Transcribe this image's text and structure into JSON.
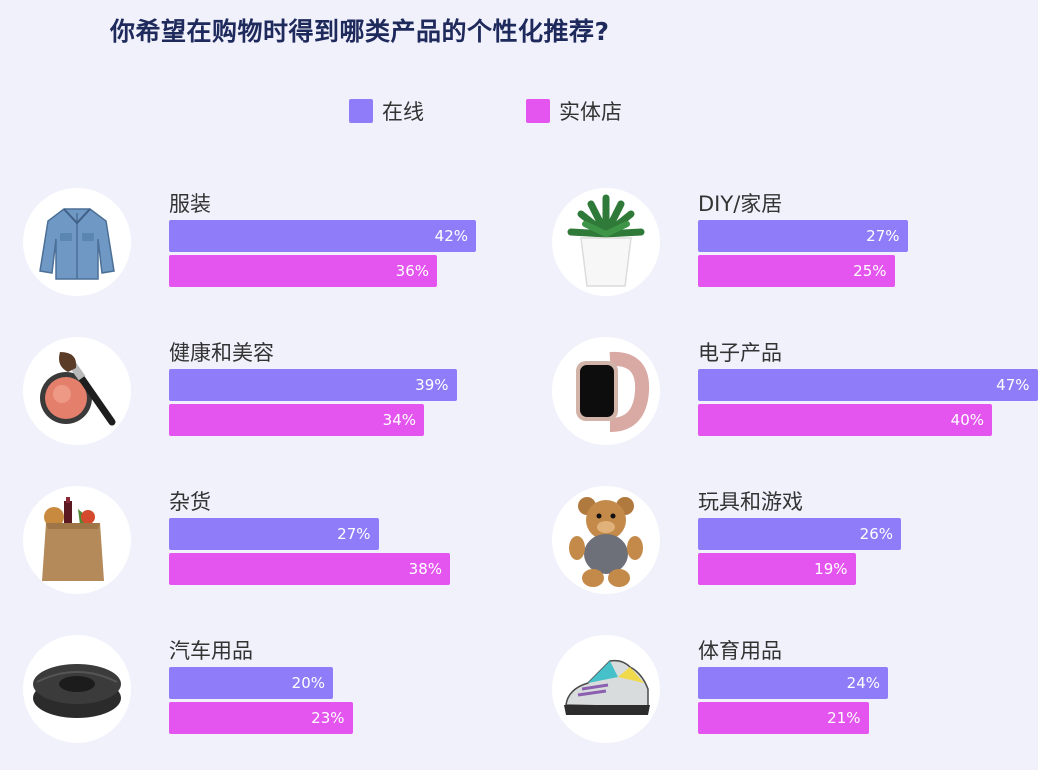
{
  "title": "你希望在购物时得到哪类产品的个性化推荐?",
  "colors": {
    "online": "#8f7cf9",
    "store": "#e454ef"
  },
  "chart_data": {
    "type": "bar",
    "orientation": "horizontal",
    "title": "你希望在购物时得到哪类产品的个性化推荐?",
    "legend": [
      "在线",
      "实体店"
    ],
    "legend_position": "top-center",
    "categories": [
      "服装",
      "健康和美容",
      "杂货",
      "汽车用品",
      "DIY/家居",
      "电子产品",
      "玩具和游戏",
      "体育用品"
    ],
    "series": [
      {
        "name": "在线",
        "values": [
          42,
          39,
          27,
          20,
          27,
          47,
          26,
          24
        ],
        "labels": [
          "42%",
          "39%",
          "27%",
          "20%",
          "27%",
          "47%",
          "26%",
          "24%"
        ]
      },
      {
        "name": "实体店",
        "values": [
          36,
          34,
          38,
          23,
          25,
          40,
          19,
          21
        ],
        "labels": [
          "36%",
          "34%",
          "38%",
          "23%",
          "25%",
          "40%",
          "19%",
          "21%"
        ]
      }
    ],
    "icons": [
      "denim-jacket-icon",
      "makeup-brush-icon",
      "grocery-bag-icon",
      "tire-icon",
      "potted-plant-icon",
      "smartwatch-icon",
      "teddy-bear-icon",
      "sneaker-icon"
    ],
    "unit": "%"
  }
}
